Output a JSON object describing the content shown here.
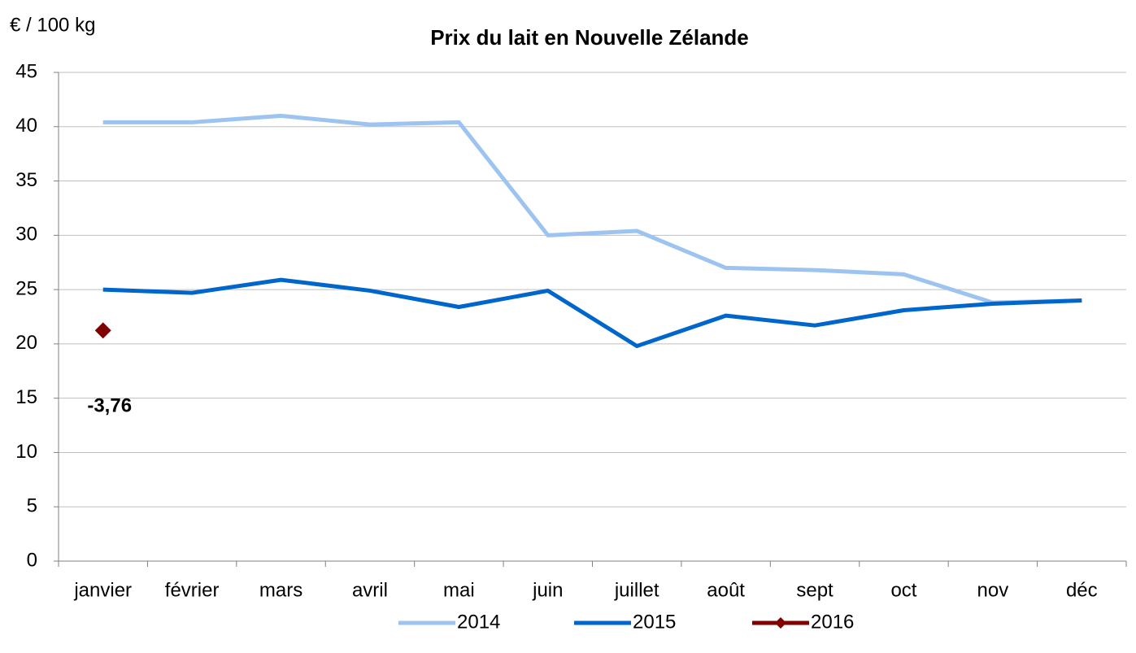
{
  "chart_data": {
    "type": "line",
    "title": "Prix du lait en Nouvelle Zélande",
    "ylabel": "€ / 100 kg",
    "annotation": "-3,76",
    "categories": [
      "janvier",
      "février",
      "mars",
      "avril",
      "mai",
      "juin",
      "juillet",
      "août",
      "sept",
      "oct",
      "nov",
      "déc"
    ],
    "series": [
      {
        "name": "2014",
        "color": "#9dc3f0",
        "values": [
          40.4,
          40.4,
          41,
          40.2,
          40.4,
          30,
          30.4,
          27,
          26.8,
          26.4,
          23.8,
          24
        ]
      },
      {
        "name": "2015",
        "color": "#0066cc",
        "values": [
          25,
          24.7,
          25.9,
          24.9,
          23.4,
          24.9,
          19.8,
          22.6,
          21.7,
          23.1,
          23.7,
          24
        ]
      },
      {
        "name": "2016",
        "color": "#800000",
        "marker": "diamond",
        "values": [
          21.24,
          null,
          null,
          null,
          null,
          null,
          null,
          null,
          null,
          null,
          null,
          null
        ]
      }
    ],
    "ylim": [
      0,
      45
    ],
    "yticks": [
      0,
      5,
      10,
      15,
      20,
      25,
      30,
      35,
      40,
      45
    ],
    "grid": true,
    "legend": "bottom"
  }
}
